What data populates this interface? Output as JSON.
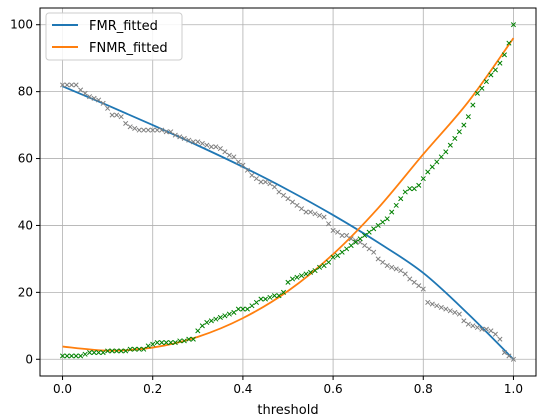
{
  "chart_data": {
    "type": "line",
    "xlabel": "threshold",
    "ylabel": "",
    "xlim": [
      -0.05,
      1.05
    ],
    "ylim": [
      -5,
      105
    ],
    "xticks": [
      0.0,
      0.2,
      0.4,
      0.6,
      0.8,
      1.0
    ],
    "xtick_labels": [
      "0.0",
      "0.2",
      "0.4",
      "0.6",
      "0.8",
      "1.0"
    ],
    "yticks": [
      0,
      20,
      40,
      60,
      80,
      100
    ],
    "ytick_labels": [
      "0",
      "20",
      "40",
      "60",
      "80",
      "100"
    ],
    "grid": true,
    "legend_position": "top-left",
    "series": [
      {
        "name": "FMR_fitted",
        "color": "#1f77b4",
        "x": [
          0.0,
          0.1,
          0.2,
          0.3,
          0.4,
          0.5,
          0.6,
          0.7,
          0.8,
          0.9,
          1.0
        ],
        "y": [
          81.6,
          75.9,
          70.0,
          63.9,
          57.5,
          50.6,
          43.1,
          34.9,
          25.8,
          13.5,
          0.0
        ]
      },
      {
        "name": "FNMR_fitted",
        "color": "#ff7f0e",
        "x": [
          0.0,
          0.1,
          0.2,
          0.3,
          0.4,
          0.5,
          0.6,
          0.7,
          0.8,
          0.9,
          1.0
        ],
        "y": [
          3.8,
          2.6,
          3.5,
          6.7,
          12.3,
          20.4,
          31.4,
          45.2,
          61.3,
          77.0,
          96.0
        ]
      }
    ],
    "scatter": [
      {
        "color": "#808080",
        "marker": "x",
        "x": [
          0.0,
          0.01,
          0.02,
          0.03,
          0.04,
          0.05,
          0.06,
          0.07,
          0.08,
          0.09,
          0.1,
          0.11,
          0.12,
          0.13,
          0.14,
          0.15,
          0.16,
          0.17,
          0.18,
          0.19,
          0.2,
          0.21,
          0.22,
          0.23,
          0.24,
          0.25,
          0.26,
          0.27,
          0.28,
          0.29,
          0.3,
          0.31,
          0.32,
          0.33,
          0.34,
          0.35,
          0.36,
          0.37,
          0.38,
          0.39,
          0.4,
          0.41,
          0.42,
          0.43,
          0.44,
          0.45,
          0.46,
          0.47,
          0.48,
          0.49,
          0.5,
          0.51,
          0.52,
          0.53,
          0.54,
          0.55,
          0.56,
          0.57,
          0.58,
          0.59,
          0.6,
          0.61,
          0.62,
          0.63,
          0.64,
          0.65,
          0.66,
          0.67,
          0.68,
          0.69,
          0.7,
          0.71,
          0.72,
          0.73,
          0.74,
          0.75,
          0.76,
          0.77,
          0.78,
          0.79,
          0.8,
          0.81,
          0.82,
          0.83,
          0.84,
          0.85,
          0.86,
          0.87,
          0.88,
          0.89,
          0.9,
          0.91,
          0.92,
          0.93,
          0.94,
          0.95,
          0.96,
          0.97,
          0.98,
          0.99,
          1.0
        ],
        "y": [
          82.0,
          82.0,
          82.0,
          82.0,
          80.5,
          79.5,
          78.5,
          78.0,
          77.5,
          76.5,
          75.0,
          73.0,
          73.0,
          72.5,
          70.5,
          69.5,
          69.0,
          68.5,
          68.5,
          68.5,
          68.5,
          68.5,
          68.5,
          68.0,
          68.0,
          67.0,
          66.5,
          66.0,
          65.5,
          65.0,
          65.0,
          64.5,
          64.0,
          63.5,
          63.5,
          63.0,
          62.0,
          61.0,
          60.5,
          59.0,
          58.0,
          56.5,
          55.0,
          54.0,
          53.0,
          53.0,
          52.5,
          51.5,
          50.0,
          49.0,
          48.0,
          47.0,
          46.0,
          45.0,
          44.0,
          44.0,
          43.5,
          43.0,
          42.5,
          40.5,
          38.5,
          38.0,
          37.0,
          37.0,
          36.0,
          35.5,
          35.0,
          34.0,
          33.0,
          32.0,
          30.0,
          29.0,
          28.0,
          27.5,
          27.0,
          26.5,
          25.5,
          24.0,
          23.0,
          22.0,
          21.0,
          17.0,
          16.5,
          16.0,
          15.5,
          15.0,
          14.5,
          14.0,
          13.5,
          11.5,
          10.5,
          10.0,
          9.5,
          9.0,
          9.0,
          8.5,
          7.5,
          6.0,
          2.0,
          1.0,
          0.0
        ]
      },
      {
        "color": "#008000",
        "marker": "x",
        "x": [
          0.0,
          0.01,
          0.02,
          0.03,
          0.04,
          0.05,
          0.06,
          0.07,
          0.08,
          0.09,
          0.1,
          0.11,
          0.12,
          0.13,
          0.14,
          0.15,
          0.16,
          0.17,
          0.18,
          0.19,
          0.2,
          0.21,
          0.22,
          0.23,
          0.24,
          0.25,
          0.26,
          0.27,
          0.28,
          0.29,
          0.3,
          0.31,
          0.32,
          0.33,
          0.34,
          0.35,
          0.36,
          0.37,
          0.38,
          0.39,
          0.4,
          0.41,
          0.42,
          0.43,
          0.44,
          0.45,
          0.46,
          0.47,
          0.48,
          0.49,
          0.5,
          0.51,
          0.52,
          0.53,
          0.54,
          0.55,
          0.56,
          0.57,
          0.58,
          0.59,
          0.6,
          0.61,
          0.62,
          0.63,
          0.64,
          0.65,
          0.66,
          0.67,
          0.68,
          0.69,
          0.7,
          0.71,
          0.72,
          0.73,
          0.74,
          0.75,
          0.76,
          0.77,
          0.78,
          0.79,
          0.8,
          0.81,
          0.82,
          0.83,
          0.84,
          0.85,
          0.86,
          0.87,
          0.88,
          0.89,
          0.9,
          0.91,
          0.92,
          0.93,
          0.94,
          0.95,
          0.96,
          0.97,
          0.98,
          0.99,
          1.0
        ],
        "y": [
          1.0,
          1.0,
          1.0,
          1.0,
          1.0,
          1.5,
          2.0,
          2.0,
          2.0,
          2.0,
          2.5,
          2.5,
          2.5,
          2.5,
          2.5,
          3.0,
          3.0,
          3.0,
          3.0,
          4.0,
          4.5,
          5.0,
          5.0,
          5.0,
          5.0,
          5.0,
          5.5,
          5.5,
          6.0,
          6.0,
          8.5,
          10.0,
          11.0,
          11.5,
          12.0,
          12.5,
          13.0,
          13.5,
          14.0,
          15.0,
          15.0,
          15.0,
          16.0,
          17.0,
          18.0,
          18.0,
          18.5,
          19.0,
          19.0,
          20.0,
          23.0,
          24.0,
          24.5,
          25.0,
          25.5,
          26.0,
          26.5,
          27.5,
          28.0,
          29.0,
          30.5,
          31.0,
          32.0,
          33.0,
          34.0,
          35.0,
          36.0,
          37.0,
          38.0,
          39.0,
          40.0,
          41.0,
          42.0,
          44.0,
          46.0,
          48.0,
          50.0,
          51.0,
          51.0,
          52.0,
          54.0,
          56.0,
          57.5,
          59.0,
          60.5,
          62.0,
          64.0,
          66.0,
          68.0,
          70.0,
          72.5,
          76.0,
          79.5,
          81.0,
          83.0,
          85.0,
          86.5,
          88.5,
          91.0,
          94.5,
          100.0
        ]
      }
    ]
  }
}
